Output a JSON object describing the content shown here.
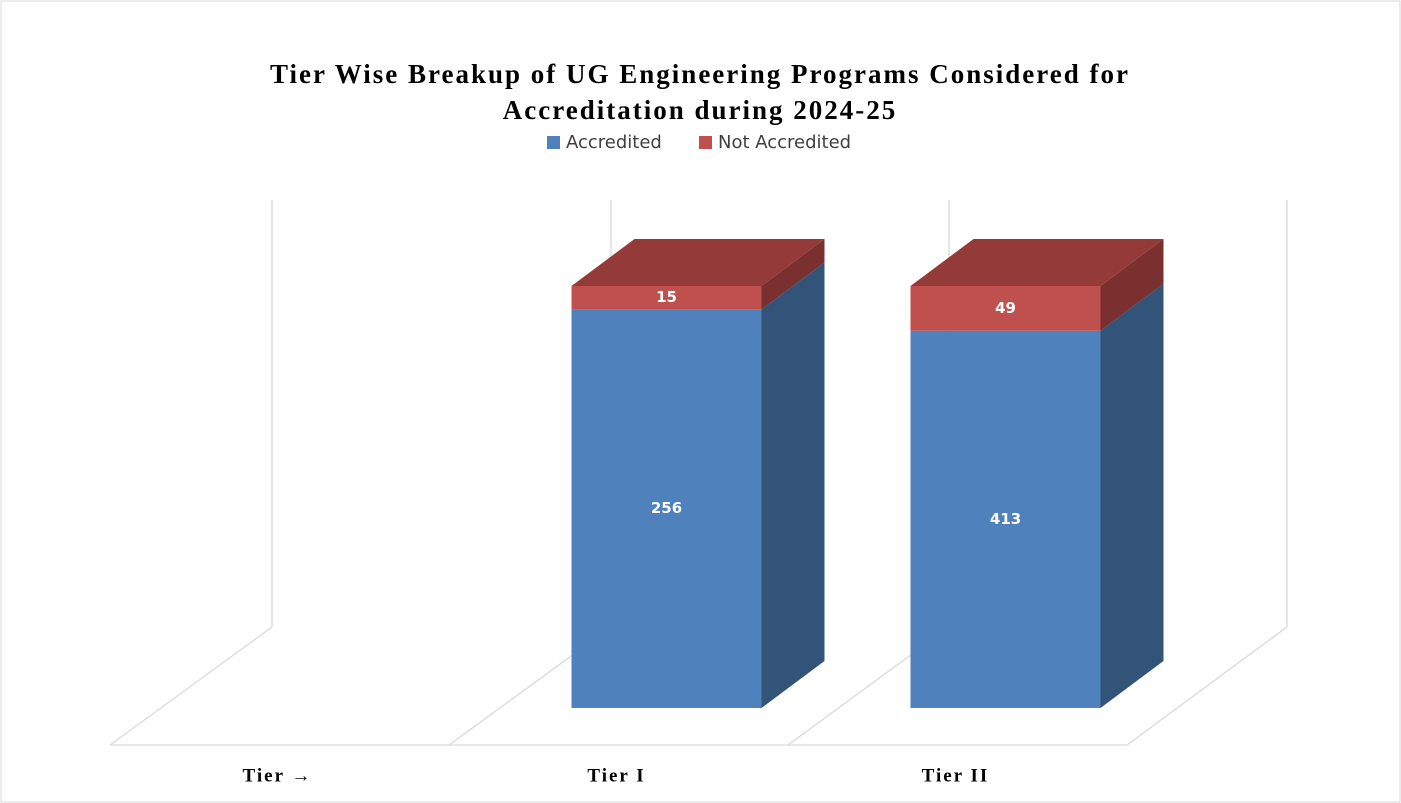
{
  "chart_data": {
    "type": "bar3d",
    "stack": "percent",
    "title": [
      "Tier Wise Breakup of  UG Engineering Programs Considered for",
      "Accreditation during 2024-25"
    ],
    "categories": [
      "Tier →",
      "Tier I",
      "Tier II"
    ],
    "series": [
      {
        "name": "Accredited",
        "color": "#4f81bd",
        "side_color": "#325479",
        "top_color": "#3f6797",
        "values": [
          null,
          256,
          413
        ]
      },
      {
        "name": "Not Accredited",
        "color": "#c0504d",
        "side_color": "#7b3030",
        "top_color": "#943a38",
        "values": [
          null,
          15,
          49
        ]
      }
    ],
    "legend": "top"
  }
}
